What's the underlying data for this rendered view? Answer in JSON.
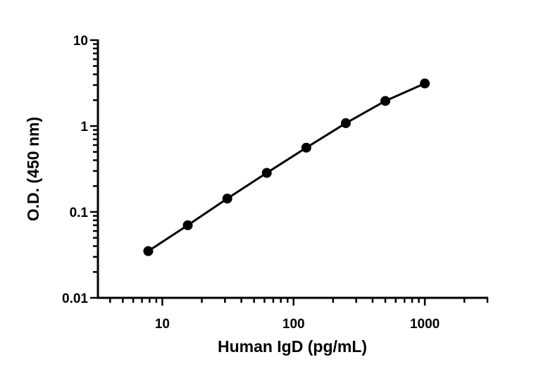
{
  "chart_data": {
    "type": "line",
    "title": "",
    "xlabel": "Human IgD (pg/mL)",
    "ylabel": "O.D. (450 nm)",
    "x_scale": "log",
    "y_scale": "log",
    "xlim": [
      3,
      3000
    ],
    "ylim": [
      0.01,
      10
    ],
    "x_ticks": [
      {
        "value": 10,
        "label": "10"
      },
      {
        "value": 100,
        "label": "100"
      },
      {
        "value": 1000,
        "label": "1000"
      }
    ],
    "y_ticks": [
      {
        "value": 10,
        "label": "10"
      },
      {
        "value": 1,
        "label": "1"
      },
      {
        "value": 0.1,
        "label": "0.1"
      },
      {
        "value": 0.01,
        "label": "0.01"
      }
    ],
    "grid": false,
    "series": [
      {
        "x": [
          7.8125,
          15.625,
          31.25,
          62.5,
          125,
          250,
          500,
          1000
        ],
        "y": [
          0.035,
          0.07,
          0.143,
          0.285,
          0.56,
          1.08,
          1.96,
          3.13
        ],
        "color": "#000000",
        "marker": "circle"
      }
    ]
  }
}
